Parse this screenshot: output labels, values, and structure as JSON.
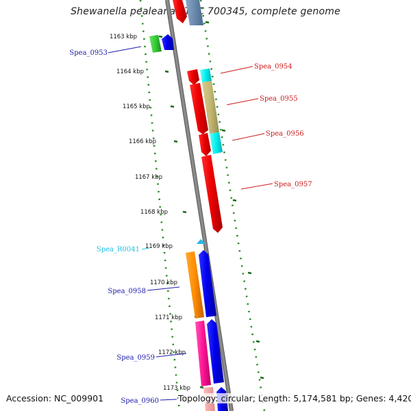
{
  "title": "Shewanella pealeana ATCC 700345, complete genome",
  "footer": {
    "accession": "Accession: NC_009901",
    "stats": "Topology: circular; Length: 5,174,581 bp; Genes: 4,420"
  },
  "colors": {
    "backbone": "#8a8a8a",
    "dotted_guides": "#2a8a2a",
    "label_forward": "#1a1aaa",
    "label_reverse": "#cc1a1a",
    "label_rna": "#22c0e0"
  },
  "ticks": [
    {
      "kbp": 1163,
      "label": "1163 kbp"
    },
    {
      "kbp": 1164,
      "label": "1164 kbp"
    },
    {
      "kbp": 1165,
      "label": "1165 kbp"
    },
    {
      "kbp": 1166,
      "label": "1166 kbp"
    },
    {
      "kbp": 1167,
      "label": "1167 kbp"
    },
    {
      "kbp": 1168,
      "label": "1168 kbp"
    },
    {
      "kbp": 1169,
      "label": "1169 kbp"
    },
    {
      "kbp": 1170,
      "label": "1170 kbp"
    },
    {
      "kbp": 1171,
      "label": "1171 kbp"
    },
    {
      "kbp": 1172,
      "label": "1172 kbp"
    },
    {
      "kbp": 1173,
      "label": "1173 kbp"
    }
  ],
  "gene_labels": [
    {
      "name": "Spea_0953",
      "side": "left",
      "type": "forward"
    },
    {
      "name": "Spea_0954",
      "side": "right",
      "type": "reverse"
    },
    {
      "name": "Spea_0955",
      "side": "right",
      "type": "reverse"
    },
    {
      "name": "Spea_0956",
      "side": "right",
      "type": "reverse"
    },
    {
      "name": "Spea_0957",
      "side": "right",
      "type": "reverse"
    },
    {
      "name": "Spea_R0041",
      "side": "left",
      "type": "rna"
    },
    {
      "name": "Spea_0958",
      "side": "left",
      "type": "forward"
    },
    {
      "name": "Spea_0959",
      "side": "left",
      "type": "forward"
    },
    {
      "name": "Spea_0960",
      "side": "left",
      "type": "forward"
    }
  ]
}
